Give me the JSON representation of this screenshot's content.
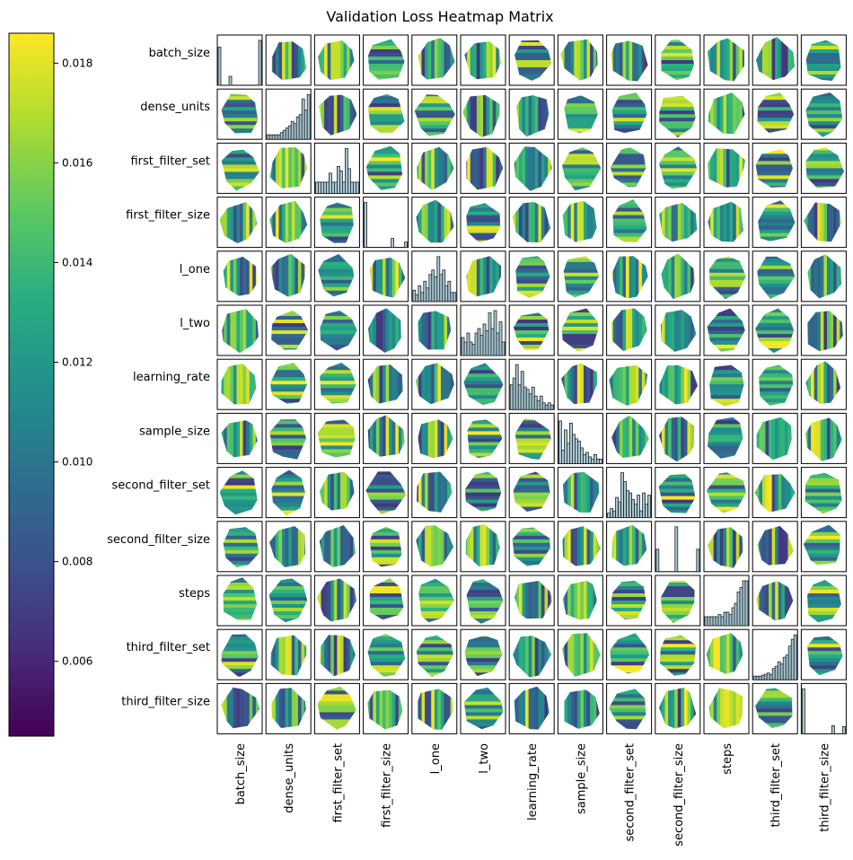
{
  "chart_data": {
    "type": "heatmap",
    "title": "Validation Loss Heatmap Matrix",
    "colormap": "viridis",
    "variables": [
      "batch_size",
      "dense_units",
      "first_filter_set",
      "first_filter_size",
      "l_one",
      "l_two",
      "learning_rate",
      "sample_size",
      "second_filter_set",
      "second_filter_size",
      "steps",
      "third_filter_set",
      "third_filter_size"
    ],
    "colorbar": {
      "range": [
        0.0045,
        0.0186
      ],
      "ticks": [
        0.006,
        0.008,
        0.01,
        0.012,
        0.014,
        0.016,
        0.018
      ],
      "tick_labels": [
        "0.006",
        "0.008",
        "0.010",
        "0.012",
        "0.014",
        "0.016",
        "0.018"
      ],
      "position": "left"
    },
    "diagonal": "histogram",
    "off_diagonal": "interpolated validation loss surface",
    "diagonal_histograms": [
      [
        0.85,
        0,
        0,
        0,
        0.2,
        0,
        0,
        0,
        0,
        0,
        0,
        0,
        0,
        0,
        0,
        1.0
      ],
      [
        0.1,
        0.1,
        0.1,
        0.1,
        0.1,
        0.15,
        0.2,
        0.25,
        0.3,
        0.4,
        0.35,
        0.5,
        0.55,
        0.9,
        0.65,
        1.0
      ],
      [
        0.25,
        0.25,
        0.25,
        0.25,
        0.25,
        0.45,
        0.25,
        0.25,
        0.6,
        0.5,
        0.25,
        1.0,
        0.55,
        0.25,
        0.25,
        0.25
      ],
      [
        1.0,
        0,
        0,
        0,
        0,
        0,
        0,
        0,
        0,
        0,
        0.2,
        0,
        0,
        0,
        0,
        0.12
      ],
      [
        0.25,
        0.15,
        0.35,
        0.2,
        0.45,
        0.3,
        0.6,
        0.7,
        0.55,
        1.0,
        0.6,
        0.7,
        0.35,
        0.45,
        0.2,
        0.2
      ],
      [
        0.4,
        0.3,
        0.5,
        0.3,
        0.25,
        0.5,
        0.6,
        0.45,
        0.7,
        0.55,
        0.95,
        0.6,
        1.0,
        0.5,
        0.75,
        0.3
      ],
      [
        0.55,
        0.7,
        1.0,
        0.55,
        0.85,
        0.5,
        0.45,
        0.35,
        0.5,
        0.3,
        0.2,
        0.3,
        0.15,
        0.1,
        0.15,
        0.1
      ],
      [
        0.95,
        0.3,
        0.75,
        0.45,
        0.9,
        0.65,
        0.55,
        0.5,
        0.35,
        0.2,
        0.25,
        0.15,
        0.1,
        0.2,
        0.1,
        0.1
      ],
      [
        0.1,
        0.2,
        0.15,
        0.45,
        0.35,
        1.0,
        0.8,
        0.6,
        0.55,
        0.4,
        0.3,
        0.5,
        0.15,
        0.55,
        0.3,
        0.5
      ],
      [
        0.5,
        0,
        0,
        0,
        0,
        0,
        0,
        1.0,
        0,
        0,
        0,
        0,
        0,
        0,
        0,
        0.5
      ],
      [
        0.2,
        0.2,
        0.2,
        0.2,
        0.2,
        0.25,
        0.2,
        0.3,
        0.3,
        0.25,
        0.4,
        0.5,
        0.75,
        0.85,
        1.0,
        1.0
      ],
      [
        0.08,
        0.08,
        0.08,
        0.1,
        0.12,
        0.15,
        0.12,
        0.25,
        0.3,
        0.4,
        0.35,
        0.5,
        0.55,
        0.75,
        0.9,
        1.0
      ],
      [
        1.0,
        0,
        0,
        0,
        0,
        0,
        0,
        0,
        0,
        0,
        0,
        0.18,
        0,
        0,
        0,
        0.16
      ]
    ]
  }
}
